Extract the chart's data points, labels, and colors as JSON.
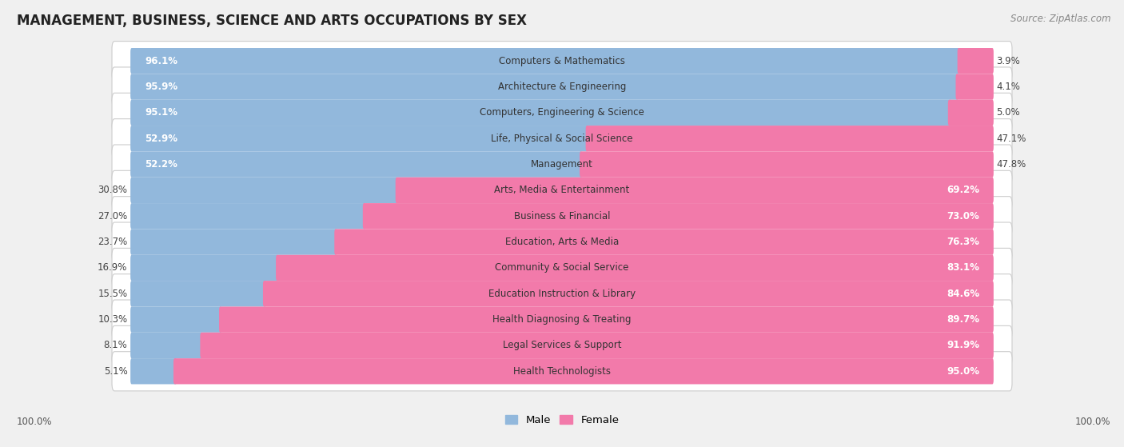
{
  "title": "MANAGEMENT, BUSINESS, SCIENCE AND ARTS OCCUPATIONS BY SEX",
  "source": "Source: ZipAtlas.com",
  "categories": [
    "Computers & Mathematics",
    "Architecture & Engineering",
    "Computers, Engineering & Science",
    "Life, Physical & Social Science",
    "Management",
    "Arts, Media & Entertainment",
    "Business & Financial",
    "Education, Arts & Media",
    "Community & Social Service",
    "Education Instruction & Library",
    "Health Diagnosing & Treating",
    "Legal Services & Support",
    "Health Technologists"
  ],
  "male_pct": [
    96.1,
    95.9,
    95.1,
    52.9,
    52.2,
    30.8,
    27.0,
    23.7,
    16.9,
    15.5,
    10.3,
    8.1,
    5.1
  ],
  "female_pct": [
    3.9,
    4.1,
    5.0,
    47.1,
    47.8,
    69.2,
    73.0,
    76.3,
    83.1,
    84.6,
    89.7,
    91.9,
    95.0
  ],
  "male_color": "#92b8dc",
  "female_color": "#f27aaa",
  "male_label": "Male",
  "female_label": "Female",
  "bg_color": "#f0f0f0",
  "row_bg_color": "#e2e2e2",
  "bar_inner_bg": "#e8e8e8",
  "title_fontsize": 12,
  "label_fontsize": 8.5,
  "source_fontsize": 8.5
}
